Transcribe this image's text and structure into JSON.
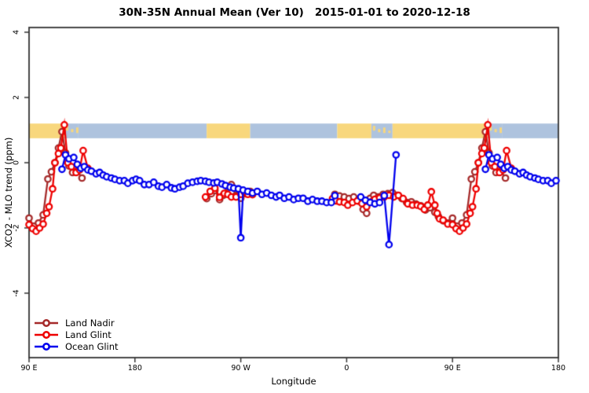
{
  "title": "30N-35N Annual Mean (Ver 10)   2015-01-01 to 2020-12-18",
  "chart_data": {
    "type": "line",
    "title": "30N-35N Annual Mean (Ver 10)   2015-01-01 to 2020-12-18",
    "xlabel": "Longitude",
    "ylabel": "XCO2 - MLO trend (ppm)",
    "grid": false,
    "legend_position": "bottom-left",
    "x_axis": {
      "note": "axis position in degrees east of 90E, spans 450 degrees (90E wraps around to 180 again)",
      "range": [
        0,
        450
      ],
      "ticks": [
        {
          "pos": 0,
          "label": "90 E"
        },
        {
          "pos": 90,
          "label": "180"
        },
        {
          "pos": 180,
          "label": "90 W"
        },
        {
          "pos": 270,
          "label": "0"
        },
        {
          "pos": 360,
          "label": "90 E"
        },
        {
          "pos": 450,
          "label": "180"
        }
      ]
    },
    "y_axis": {
      "range": [
        -6.0,
        4.2
      ],
      "ticks": [
        -4,
        -2,
        0,
        2,
        4
      ]
    },
    "map_strip": {
      "note": "world coastline band for 30N-35N drawn at y = 0.75 to 1.2",
      "y0": 0.75,
      "y1": 1.2,
      "land_color": "#F8D77D",
      "ocean_color": "#AEC3DE",
      "segments": [
        {
          "from": 0,
          "to": 30,
          "type": "land"
        },
        {
          "from": 30,
          "to": 42,
          "type": "speckle"
        },
        {
          "from": 42,
          "to": 151,
          "type": "ocean"
        },
        {
          "from": 151,
          "to": 188,
          "type": "land"
        },
        {
          "from": 188,
          "to": 262,
          "type": "ocean"
        },
        {
          "from": 262,
          "to": 291,
          "type": "land"
        },
        {
          "from": 291,
          "to": 309,
          "type": "speckle"
        },
        {
          "from": 309,
          "to": 390,
          "type": "land"
        },
        {
          "from": 390,
          "to": 402,
          "type": "speckle"
        },
        {
          "from": 402,
          "to": 450,
          "type": "ocean"
        }
      ]
    },
    "series": [
      {
        "name": "Land Nadir",
        "color": "#A52A2A",
        "segments": [
          [
            [
              0,
              -1.7
            ],
            [
              4,
              -1.95
            ],
            [
              8,
              -1.85
            ],
            [
              12,
              -1.6
            ],
            [
              16,
              -0.5
            ],
            [
              19,
              -0.28
            ],
            [
              22,
              0.0
            ],
            [
              25,
              0.45
            ],
            [
              28,
              0.95
            ],
            [
              31,
              0.3
            ],
            [
              34,
              -0.1
            ],
            [
              37,
              -0.3
            ],
            [
              41,
              -0.25
            ],
            [
              45,
              -0.47
            ]
          ],
          [
            [
              151,
              -1.1
            ],
            [
              155,
              -0.95
            ],
            [
              158,
              -0.85
            ],
            [
              162,
              -1.13
            ],
            [
              165,
              -1.0
            ],
            [
              169,
              -0.75
            ],
            [
              172,
              -0.67
            ],
            [
              176,
              -1.0
            ],
            [
              180,
              -1.09
            ],
            [
              184,
              -0.95
            ],
            [
              188,
              -0.88
            ]
          ],
          [
            [
              260,
              -0.97
            ],
            [
              264,
              -1.02
            ],
            [
              268,
              -1.05
            ],
            [
              272,
              -1.1
            ],
            [
              276,
              -1.05
            ],
            [
              280,
              -1.17
            ],
            [
              284,
              -1.43
            ],
            [
              287,
              -1.55
            ],
            [
              290,
              -1.09
            ],
            [
              293,
              -1.0
            ],
            [
              297,
              -1.05
            ],
            [
              301,
              -0.97
            ],
            [
              305,
              -0.95
            ],
            [
              309,
              -0.92
            ],
            [
              313,
              -1.0
            ],
            [
              317,
              -1.1
            ],
            [
              321,
              -1.22
            ],
            [
              325,
              -1.2
            ],
            [
              329,
              -1.27
            ],
            [
              333,
              -1.32
            ],
            [
              337,
              -1.45
            ],
            [
              341,
              -1.38
            ],
            [
              345,
              -1.52
            ],
            [
              348,
              -1.65
            ],
            [
              352,
              -1.78
            ],
            [
              356,
              -1.85
            ],
            [
              360,
              -1.7
            ],
            [
              364,
              -1.95
            ],
            [
              368,
              -1.85
            ],
            [
              372,
              -1.6
            ],
            [
              376,
              -0.5
            ],
            [
              379,
              -0.28
            ],
            [
              382,
              0.0
            ],
            [
              385,
              0.45
            ],
            [
              388,
              0.95
            ],
            [
              391,
              0.3
            ],
            [
              394,
              -0.1
            ],
            [
              397,
              -0.3
            ],
            [
              401,
              -0.25
            ],
            [
              405,
              -0.47
            ]
          ]
        ]
      },
      {
        "name": "Land Glint",
        "color": "#EE0000",
        "segments": [
          [
            [
              0,
              -1.9
            ],
            [
              3,
              -2.02
            ],
            [
              6,
              -2.1
            ],
            [
              9,
              -2.0
            ],
            [
              12,
              -1.88
            ],
            [
              15,
              -1.55
            ],
            [
              17,
              -1.35
            ],
            [
              20,
              -0.8
            ],
            [
              22,
              0.0
            ],
            [
              25,
              0.28
            ],
            [
              27,
              0.45
            ],
            [
              30,
              1.16
            ],
            [
              33,
              0.0
            ],
            [
              36,
              -0.12
            ],
            [
              40,
              -0.3
            ],
            [
              43,
              -0.22
            ],
            [
              46,
              0.37
            ],
            [
              50,
              -0.17
            ]
          ],
          [
            [
              150,
              -1.05
            ],
            [
              154,
              -0.88
            ],
            [
              158,
              -0.78
            ],
            [
              162,
              -1.06
            ],
            [
              166,
              -0.94
            ],
            [
              169,
              -0.97
            ],
            [
              172,
              -1.05
            ],
            [
              176,
              -1.05
            ],
            [
              180,
              -0.97
            ],
            [
              183,
              -0.9
            ],
            [
              186,
              -0.97
            ],
            [
              190,
              -0.98
            ]
          ],
          [
            [
              258,
              -1.1
            ],
            [
              261,
              -1.17
            ],
            [
              264,
              -1.2
            ],
            [
              268,
              -1.22
            ],
            [
              271,
              -1.3
            ],
            [
              275,
              -1.22
            ],
            [
              279,
              -1.17
            ],
            [
              283,
              -1.25
            ],
            [
              287,
              -1.35
            ],
            [
              291,
              -1.2
            ],
            [
              294,
              -1.12
            ],
            [
              298,
              -1.08
            ],
            [
              302,
              -1.05
            ],
            [
              306,
              -1.0
            ],
            [
              310,
              -1.05
            ],
            [
              314,
              -1.0
            ],
            [
              318,
              -1.1
            ],
            [
              322,
              -1.26
            ],
            [
              326,
              -1.3
            ],
            [
              330,
              -1.3
            ],
            [
              333,
              -1.34
            ],
            [
              336,
              -1.43
            ],
            [
              339,
              -1.3
            ],
            [
              342,
              -0.89
            ],
            [
              345,
              -1.3
            ],
            [
              347,
              -1.55
            ],
            [
              349,
              -1.72
            ],
            [
              352,
              -1.76
            ],
            [
              356,
              -1.88
            ],
            [
              360,
              -1.9
            ],
            [
              363,
              -2.02
            ],
            [
              366,
              -2.1
            ],
            [
              369,
              -2.0
            ],
            [
              372,
              -1.88
            ],
            [
              375,
              -1.55
            ],
            [
              377,
              -1.35
            ],
            [
              380,
              -0.8
            ],
            [
              382,
              0.0
            ],
            [
              385,
              0.28
            ],
            [
              387,
              0.45
            ],
            [
              390,
              1.16
            ],
            [
              393,
              0.0
            ],
            [
              396,
              -0.12
            ],
            [
              400,
              -0.3
            ],
            [
              403,
              -0.22
            ],
            [
              406,
              0.37
            ],
            [
              410,
              -0.17
            ]
          ]
        ]
      },
      {
        "name": "Ocean Glint",
        "color": "#0000EE",
        "segments": [
          [
            [
              28,
              -0.2
            ],
            [
              31,
              0.24
            ],
            [
              34,
              0.12
            ],
            [
              38,
              0.16
            ],
            [
              41,
              -0.05
            ],
            [
              44,
              -0.17
            ],
            [
              47,
              -0.12
            ],
            [
              50,
              -0.22
            ],
            [
              53,
              -0.26
            ],
            [
              57,
              -0.34
            ],
            [
              60,
              -0.3
            ],
            [
              63,
              -0.38
            ],
            [
              66,
              -0.43
            ],
            [
              70,
              -0.47
            ],
            [
              73,
              -0.51
            ],
            [
              77,
              -0.55
            ],
            [
              81,
              -0.55
            ],
            [
              84,
              -0.63
            ],
            [
              88,
              -0.55
            ],
            [
              91,
              -0.51
            ],
            [
              94,
              -0.55
            ],
            [
              98,
              -0.67
            ],
            [
              102,
              -0.67
            ],
            [
              106,
              -0.6
            ],
            [
              110,
              -0.72
            ],
            [
              113,
              -0.75
            ],
            [
              117,
              -0.67
            ],
            [
              121,
              -0.77
            ],
            [
              124,
              -0.8
            ],
            [
              128,
              -0.75
            ],
            [
              131,
              -0.72
            ],
            [
              135,
              -0.63
            ],
            [
              139,
              -0.6
            ],
            [
              143,
              -0.57
            ],
            [
              146,
              -0.55
            ],
            [
              150,
              -0.57
            ],
            [
              153,
              -0.6
            ],
            [
              157,
              -0.62
            ],
            [
              160,
              -0.6
            ],
            [
              164,
              -0.65
            ],
            [
              167,
              -0.7
            ],
            [
              171,
              -0.75
            ],
            [
              174,
              -0.78
            ],
            [
              178,
              -0.8
            ],
            [
              180,
              -2.3
            ],
            [
              182,
              -0.84
            ],
            [
              186,
              -0.88
            ],
            [
              190,
              -0.93
            ],
            [
              194,
              -0.88
            ],
            [
              198,
              -0.97
            ],
            [
              202,
              -0.93
            ],
            [
              206,
              -1.0
            ],
            [
              210,
              -1.05
            ],
            [
              213,
              -1.0
            ],
            [
              217,
              -1.09
            ],
            [
              221,
              -1.05
            ],
            [
              225,
              -1.13
            ],
            [
              229,
              -1.09
            ],
            [
              233,
              -1.09
            ],
            [
              237,
              -1.18
            ],
            [
              241,
              -1.13
            ],
            [
              245,
              -1.18
            ],
            [
              249,
              -1.18
            ],
            [
              253,
              -1.22
            ],
            [
              257,
              -1.22
            ],
            [
              260,
              -1.01
            ]
          ],
          [
            [
              282,
              -1.05
            ],
            [
              286,
              -1.15
            ],
            [
              290,
              -1.22
            ],
            [
              294,
              -1.26
            ],
            [
              298,
              -1.22
            ],
            [
              302,
              -1.01
            ],
            [
              306,
              -2.51
            ],
            [
              312,
              0.24
            ]
          ],
          [
            [
              388,
              -0.2
            ],
            [
              391,
              0.24
            ],
            [
              394,
              0.12
            ],
            [
              398,
              0.16
            ],
            [
              401,
              -0.05
            ],
            [
              404,
              -0.17
            ],
            [
              407,
              -0.12
            ],
            [
              410,
              -0.22
            ],
            [
              413,
              -0.26
            ],
            [
              417,
              -0.34
            ],
            [
              420,
              -0.3
            ],
            [
              423,
              -0.38
            ],
            [
              426,
              -0.43
            ],
            [
              430,
              -0.47
            ],
            [
              433,
              -0.51
            ],
            [
              437,
              -0.55
            ],
            [
              441,
              -0.55
            ],
            [
              444,
              -0.63
            ],
            [
              448,
              -0.55
            ]
          ]
        ]
      }
    ],
    "legend": {
      "entries": [
        "Land Nadir",
        "Land Glint",
        "Ocean Glint"
      ]
    }
  }
}
